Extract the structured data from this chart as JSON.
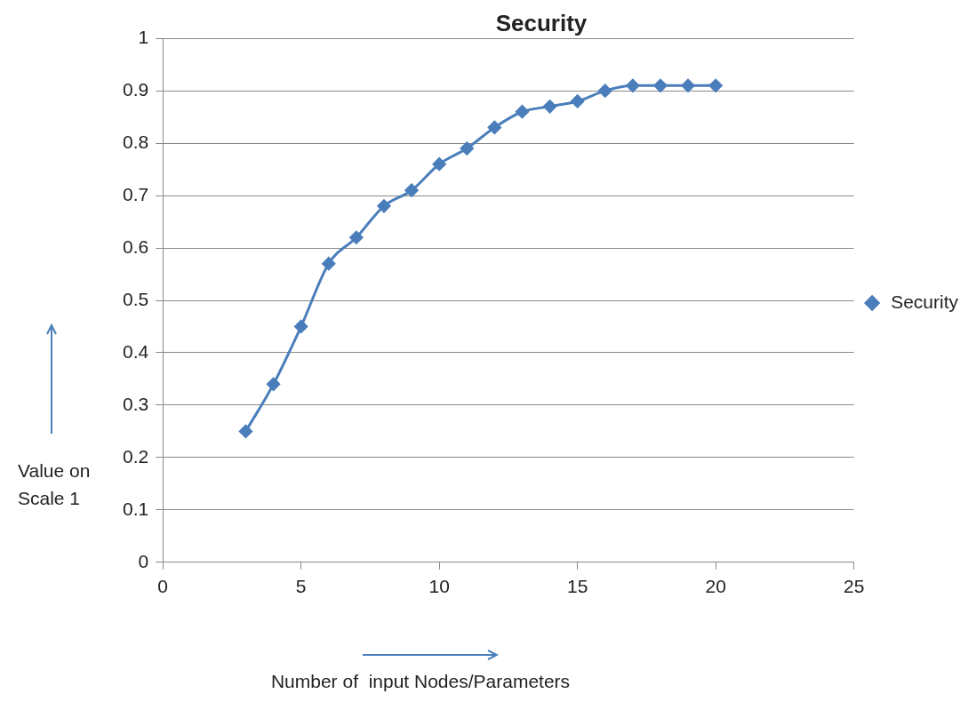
{
  "chart_data": {
    "type": "line",
    "title": "Security",
    "xlabel": "Number of  input Nodes/Parameters",
    "ylabel": "Value on Scale 1",
    "x": [
      3,
      4,
      5,
      6,
      7,
      8,
      9,
      10,
      11,
      12,
      13,
      14,
      15,
      16,
      17,
      18,
      19,
      20
    ],
    "series": [
      {
        "name": "Security",
        "color": "#4a7ebb",
        "values": [
          0.25,
          0.34,
          0.45,
          0.57,
          0.62,
          0.68,
          0.71,
          0.76,
          0.79,
          0.83,
          0.86,
          0.87,
          0.88,
          0.9,
          0.91,
          0.91,
          0.91,
          0.91
        ]
      }
    ],
    "xlim": [
      0,
      25
    ],
    "xticks": [
      0,
      5,
      10,
      15,
      20,
      25
    ],
    "ylim": [
      0,
      1
    ],
    "yticks": [
      0,
      0.1,
      0.2,
      0.3,
      0.4,
      0.5,
      0.6,
      0.7,
      0.8,
      0.9,
      1
    ],
    "grid": "y",
    "legend": "right",
    "marker": "diamond",
    "line_style": "solid"
  }
}
